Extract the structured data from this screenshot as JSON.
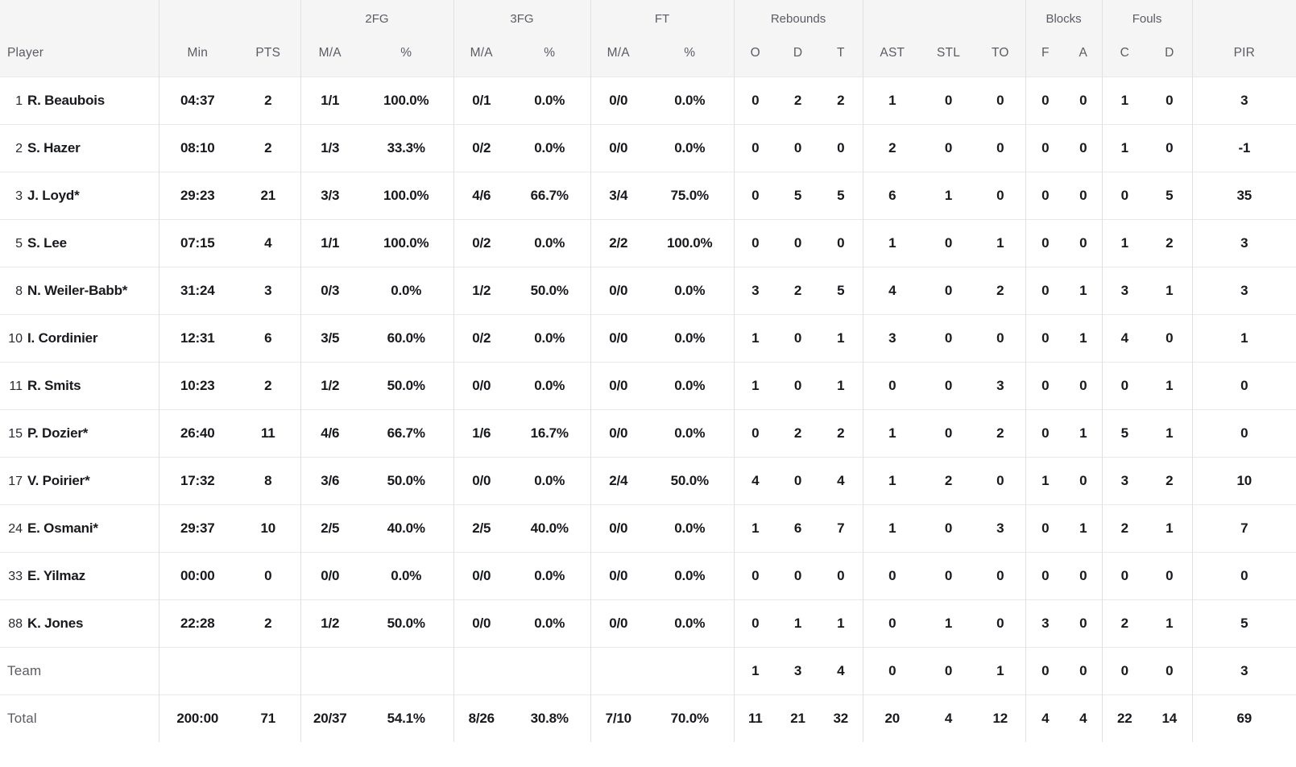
{
  "table": {
    "header": {
      "groups": [
        {
          "label": "",
          "span": 1
        },
        {
          "label": "",
          "span": 2
        },
        {
          "label": "2FG",
          "span": 2
        },
        {
          "label": "3FG",
          "span": 2
        },
        {
          "label": "FT",
          "span": 2
        },
        {
          "label": "Rebounds",
          "span": 3
        },
        {
          "label": "",
          "span": 3
        },
        {
          "label": "Blocks",
          "span": 2
        },
        {
          "label": "Fouls",
          "span": 2
        },
        {
          "label": "",
          "span": 1
        }
      ],
      "columns": [
        "Player",
        "Min",
        "PTS",
        "M/A",
        "%",
        "M/A",
        "%",
        "M/A",
        "%",
        "O",
        "D",
        "T",
        "AST",
        "STL",
        "TO",
        "F",
        "A",
        "C",
        "D",
        "PIR"
      ]
    },
    "players": [
      {
        "number": "1",
        "name": "R. Beaubois",
        "stats": [
          "04:37",
          "2",
          "1/1",
          "100.0%",
          "0/1",
          "0.0%",
          "0/0",
          "0.0%",
          "0",
          "2",
          "2",
          "1",
          "0",
          "0",
          "0",
          "0",
          "1",
          "0",
          "3"
        ]
      },
      {
        "number": "2",
        "name": "S. Hazer",
        "stats": [
          "08:10",
          "2",
          "1/3",
          "33.3%",
          "0/2",
          "0.0%",
          "0/0",
          "0.0%",
          "0",
          "0",
          "0",
          "2",
          "0",
          "0",
          "0",
          "0",
          "1",
          "0",
          "-1"
        ]
      },
      {
        "number": "3",
        "name": "J. Loyd*",
        "stats": [
          "29:23",
          "21",
          "3/3",
          "100.0%",
          "4/6",
          "66.7%",
          "3/4",
          "75.0%",
          "0",
          "5",
          "5",
          "6",
          "1",
          "0",
          "0",
          "0",
          "0",
          "5",
          "35"
        ]
      },
      {
        "number": "5",
        "name": "S. Lee",
        "stats": [
          "07:15",
          "4",
          "1/1",
          "100.0%",
          "0/2",
          "0.0%",
          "2/2",
          "100.0%",
          "0",
          "0",
          "0",
          "1",
          "0",
          "1",
          "0",
          "0",
          "1",
          "2",
          "3"
        ]
      },
      {
        "number": "8",
        "name": "N. Weiler-Babb*",
        "stats": [
          "31:24",
          "3",
          "0/3",
          "0.0%",
          "1/2",
          "50.0%",
          "0/0",
          "0.0%",
          "3",
          "2",
          "5",
          "4",
          "0",
          "2",
          "0",
          "1",
          "3",
          "1",
          "3"
        ]
      },
      {
        "number": "10",
        "name": "I. Cordinier",
        "stats": [
          "12:31",
          "6",
          "3/5",
          "60.0%",
          "0/2",
          "0.0%",
          "0/0",
          "0.0%",
          "1",
          "0",
          "1",
          "3",
          "0",
          "0",
          "0",
          "1",
          "4",
          "0",
          "1"
        ]
      },
      {
        "number": "11",
        "name": "R. Smits",
        "stats": [
          "10:23",
          "2",
          "1/2",
          "50.0%",
          "0/0",
          "0.0%",
          "0/0",
          "0.0%",
          "1",
          "0",
          "1",
          "0",
          "0",
          "3",
          "0",
          "0",
          "0",
          "1",
          "0"
        ]
      },
      {
        "number": "15",
        "name": "P. Dozier*",
        "stats": [
          "26:40",
          "11",
          "4/6",
          "66.7%",
          "1/6",
          "16.7%",
          "0/0",
          "0.0%",
          "0",
          "2",
          "2",
          "1",
          "0",
          "2",
          "0",
          "1",
          "5",
          "1",
          "0"
        ]
      },
      {
        "number": "17",
        "name": "V. Poirier*",
        "stats": [
          "17:32",
          "8",
          "3/6",
          "50.0%",
          "0/0",
          "0.0%",
          "2/4",
          "50.0%",
          "4",
          "0",
          "4",
          "1",
          "2",
          "0",
          "1",
          "0",
          "3",
          "2",
          "10"
        ]
      },
      {
        "number": "24",
        "name": "E. Osmani*",
        "stats": [
          "29:37",
          "10",
          "2/5",
          "40.0%",
          "2/5",
          "40.0%",
          "0/0",
          "0.0%",
          "1",
          "6",
          "7",
          "1",
          "0",
          "3",
          "0",
          "1",
          "2",
          "1",
          "7"
        ]
      },
      {
        "number": "33",
        "name": "E. Yilmaz",
        "stats": [
          "00:00",
          "0",
          "0/0",
          "0.0%",
          "0/0",
          "0.0%",
          "0/0",
          "0.0%",
          "0",
          "0",
          "0",
          "0",
          "0",
          "0",
          "0",
          "0",
          "0",
          "0",
          "0"
        ]
      },
      {
        "number": "88",
        "name": "K. Jones",
        "stats": [
          "22:28",
          "2",
          "1/2",
          "50.0%",
          "0/0",
          "0.0%",
          "0/0",
          "0.0%",
          "0",
          "1",
          "1",
          "0",
          "1",
          "0",
          "3",
          "0",
          "2",
          "1",
          "5"
        ]
      }
    ],
    "team_row": {
      "label": "Team",
      "stats": [
        "",
        "",
        "",
        "",
        "",
        "",
        "",
        "",
        "1",
        "3",
        "4",
        "0",
        "0",
        "1",
        "0",
        "0",
        "0",
        "0",
        "3"
      ]
    },
    "total_row": {
      "label": "Total",
      "stats": [
        "200:00",
        "71",
        "20/37",
        "54.1%",
        "8/26",
        "30.8%",
        "7/10",
        "70.0%",
        "11",
        "21",
        "32",
        "20",
        "4",
        "12",
        "4",
        "4",
        "22",
        "14",
        "69"
      ]
    }
  }
}
